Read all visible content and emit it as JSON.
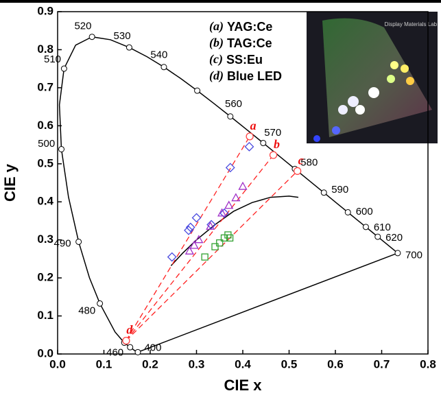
{
  "chart_data": {
    "type": "scatter",
    "xlabel": "CIE x",
    "ylabel": "CIE y",
    "xlim": [
      0,
      0.8
    ],
    "ylim": [
      0,
      0.9
    ],
    "xticks": [
      {
        "value": 0,
        "label": "0.0"
      },
      0.1,
      0.2,
      0.3,
      0.4,
      0.5,
      0.6,
      0.7,
      0.8
    ],
    "yticks": [
      {
        "value": 0,
        "label": "0.0"
      },
      0.1,
      0.2,
      0.3,
      0.4,
      0.5,
      0.6,
      0.7,
      0.8,
      0.9
    ],
    "legend": [
      {
        "letter": "(a)",
        "text": "YAG:Ce"
      },
      {
        "letter": "(b)",
        "text": "TAG:Ce"
      },
      {
        "letter": "(c)",
        "text": "SS:Eu"
      },
      {
        "letter": "(d)",
        "text": "Blue LED"
      }
    ],
    "inset_text": "Display Materials Lab.",
    "locus": {
      "color": "#000000",
      "x": [
        0.1733,
        0.1666,
        0.1566,
        0.144,
        0.1241,
        0.0913,
        0.0687,
        0.0454,
        0.0235,
        0.0082,
        0.0039,
        0.0139,
        0.0389,
        0.0743,
        0.1142,
        0.1547,
        0.1929,
        0.2296,
        0.2658,
        0.3016,
        0.3373,
        0.3731,
        0.4087,
        0.4441,
        0.4788,
        0.5125,
        0.5448,
        0.5752,
        0.6029,
        0.627,
        0.6482,
        0.6658,
        0.6801,
        0.6915,
        0.7006,
        0.7347
      ],
      "y": [
        0.0048,
        0.0089,
        0.0177,
        0.0297,
        0.0578,
        0.1327,
        0.2007,
        0.295,
        0.4127,
        0.5384,
        0.6548,
        0.7502,
        0.812,
        0.8338,
        0.8262,
        0.8059,
        0.7816,
        0.7543,
        0.7243,
        0.6923,
        0.6589,
        0.6245,
        0.5896,
        0.5547,
        0.5202,
        0.4866,
        0.4544,
        0.4242,
        0.3965,
        0.3725,
        0.3514,
        0.334,
        0.3197,
        0.3083,
        0.2993,
        0.2653
      ]
    },
    "locus_markers": {
      "x": [
        0.1733,
        0.1566,
        0.144,
        0.0913,
        0.0454,
        0.0082,
        0.0139,
        0.0743,
        0.1547,
        0.2296,
        0.3016,
        0.3731,
        0.4441,
        0.5125,
        0.5752,
        0.627,
        0.6658,
        0.6915,
        0.7347
      ],
      "y": [
        0.0048,
        0.0177,
        0.0297,
        0.1327,
        0.295,
        0.5384,
        0.7502,
        0.8338,
        0.8059,
        0.7543,
        0.6923,
        0.6245,
        0.5547,
        0.4866,
        0.4242,
        0.3725,
        0.334,
        0.3083,
        0.2653
      ],
      "labels": [
        "400",
        null,
        "460",
        "480",
        "490",
        "500",
        "510",
        "520",
        "530",
        "540",
        null,
        "560",
        "570",
        "580",
        "590",
        "600",
        "610",
        "620",
        "700"
      ]
    },
    "planckian": {
      "color": "#000000",
      "x": [
        0.245,
        0.27,
        0.3,
        0.34,
        0.38,
        0.42,
        0.46,
        0.5,
        0.52
      ],
      "y": [
        0.232,
        0.265,
        0.3,
        0.34,
        0.375,
        0.398,
        0.412,
        0.415,
        0.412
      ]
    },
    "series": [
      {
        "marker": "diamond",
        "color": "#4a4adf",
        "x": [
          0.247,
          0.283,
          0.287,
          0.3,
          0.332,
          0.36,
          0.373,
          0.414
        ],
        "y": [
          0.255,
          0.325,
          0.333,
          0.358,
          0.34,
          0.37,
          0.49,
          0.545
        ]
      },
      {
        "marker": "triangle",
        "color": "#a030c8",
        "x": [
          0.285,
          0.295,
          0.305,
          0.33,
          0.355,
          0.37,
          0.385,
          0.4
        ],
        "y": [
          0.27,
          0.285,
          0.3,
          0.335,
          0.37,
          0.39,
          0.41,
          0.44
        ]
      },
      {
        "marker": "square",
        "color": "#30a030",
        "x": [
          0.318,
          0.34,
          0.35,
          0.36,
          0.368,
          0.372
        ],
        "y": [
          0.255,
          0.282,
          0.292,
          0.305,
          0.313,
          0.305
        ]
      }
    ],
    "sources": {
      "color": "#ff4444",
      "x": [
        0.415,
        0.466,
        0.518,
        0.148
      ],
      "y": [
        0.572,
        0.523,
        0.481,
        0.035
      ],
      "labels": [
        "a",
        "b",
        "c",
        "d"
      ]
    }
  }
}
